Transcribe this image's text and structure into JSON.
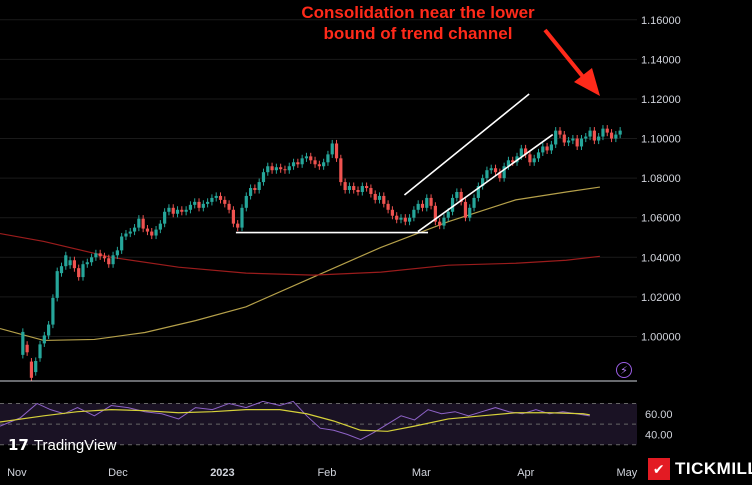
{
  "annotation": {
    "line1": "Consolidation near the lower",
    "line2": "bound of trend channel"
  },
  "branding": {
    "tradingview": "TradingView",
    "tickmill": "TICKMILL"
  },
  "icons": {
    "tradingview_logo": "tradingview-logo-icon",
    "tickmill_logo": "tickmill-logo-icon",
    "flash": "lightning-icon"
  },
  "colors": {
    "background": "#000000",
    "up_candle": "#26a69a",
    "down_candle": "#ef5350",
    "ma_fast": "#b5a04a",
    "ma_slow": "#9b1c1c",
    "rsi": "#8e63c7",
    "rsi_ma": "#d6d13a",
    "trendline": "#ffffff",
    "annotation": "#ff2a1a"
  },
  "chart_data": {
    "type": "candlestick",
    "price_axis": {
      "ylim": [
        0.978,
        1.17
      ],
      "ticks": [
        "1.16000",
        "1.14000",
        "1.12000",
        "1.10000",
        "1.08000",
        "1.06000",
        "1.04000",
        "1.02000",
        "1.00000"
      ]
    },
    "time_axis": {
      "labels": [
        "Nov",
        "Dec",
        "2023",
        "Feb",
        "Mar",
        "Apr",
        "May"
      ],
      "label_days": [
        2,
        32,
        63,
        94,
        122,
        153,
        183
      ],
      "xlim": [
        -3,
        186
      ]
    },
    "candles": [
      [
        1,
        0.9907,
        1.0023
      ],
      [
        2,
        0.9958,
        0.992
      ],
      [
        3,
        0.9873,
        0.9791
      ],
      [
        4,
        0.982,
        0.9876
      ],
      [
        5,
        0.989,
        0.996
      ],
      [
        6,
        0.9965,
        1.0005
      ],
      [
        7,
        1.0005,
        1.006
      ],
      [
        8,
        1.006,
        1.0195
      ],
      [
        9,
        1.0195,
        1.033
      ],
      [
        10,
        1.032,
        1.0355
      ],
      [
        11,
        1.0355,
        1.041
      ],
      [
        12,
        1.036,
        1.0385
      ],
      [
        13,
        1.0385,
        1.0345
      ],
      [
        14,
        1.0345,
        1.03
      ],
      [
        15,
        1.03,
        1.0365
      ],
      [
        16,
        1.0365,
        1.0375
      ],
      [
        17,
        1.0375,
        1.04
      ],
      [
        18,
        1.04,
        1.042
      ],
      [
        19,
        1.042,
        1.0405
      ],
      [
        20,
        1.0405,
        1.0395
      ],
      [
        21,
        1.0395,
        1.0365
      ],
      [
        22,
        1.0365,
        1.041
      ],
      [
        23,
        1.041,
        1.0435
      ],
      [
        24,
        1.0435,
        1.0505
      ],
      [
        25,
        1.0505,
        1.052
      ],
      [
        26,
        1.052,
        1.053
      ],
      [
        27,
        1.053,
        1.055
      ],
      [
        28,
        1.055,
        1.0595
      ],
      [
        29,
        1.0595,
        1.0545
      ],
      [
        30,
        1.0545,
        1.053
      ],
      [
        31,
        1.053,
        1.051
      ],
      [
        32,
        1.051,
        1.054
      ],
      [
        33,
        1.054,
        1.057
      ],
      [
        34,
        1.057,
        1.063
      ],
      [
        35,
        1.063,
        1.065
      ],
      [
        36,
        1.065,
        1.062
      ],
      [
        37,
        1.062,
        1.064
      ],
      [
        38,
        1.064,
        1.063
      ],
      [
        39,
        1.063,
        1.064
      ],
      [
        40,
        1.064,
        1.0665
      ],
      [
        41,
        1.0665,
        1.068
      ],
      [
        42,
        1.068,
        1.065
      ],
      [
        43,
        1.065,
        1.067
      ],
      [
        44,
        1.067,
        1.068
      ],
      [
        45,
        1.068,
        1.07
      ],
      [
        46,
        1.07,
        1.071
      ],
      [
        47,
        1.071,
        1.069
      ],
      [
        48,
        1.069,
        1.067
      ],
      [
        49,
        1.067,
        1.064
      ],
      [
        50,
        1.064,
        1.057
      ],
      [
        51,
        1.057,
        1.055
      ],
      [
        52,
        1.055,
        1.065
      ],
      [
        53,
        1.065,
        1.071
      ],
      [
        54,
        1.071,
        1.075
      ],
      [
        55,
        1.075,
        1.074
      ],
      [
        56,
        1.074,
        1.078
      ],
      [
        57,
        1.078,
        1.083
      ],
      [
        58,
        1.083,
        1.086
      ],
      [
        59,
        1.086,
        1.084
      ],
      [
        60,
        1.084,
        1.0855
      ],
      [
        61,
        1.0855,
        1.0845
      ],
      [
        62,
        1.0845,
        1.084
      ],
      [
        63,
        1.084,
        1.086
      ],
      [
        64,
        1.086,
        1.088
      ],
      [
        65,
        1.088,
        1.087
      ],
      [
        66,
        1.087,
        1.09
      ],
      [
        67,
        1.09,
        1.091
      ],
      [
        68,
        1.091,
        1.089
      ],
      [
        69,
        1.089,
        1.087
      ],
      [
        70,
        1.087,
        1.086
      ],
      [
        71,
        1.086,
        1.088
      ],
      [
        72,
        1.088,
        1.092
      ],
      [
        73,
        1.092,
        1.0975
      ],
      [
        74,
        1.0975,
        1.09
      ],
      [
        75,
        1.09,
        1.078
      ],
      [
        76,
        1.078,
        1.074
      ],
      [
        77,
        1.074,
        1.076
      ],
      [
        78,
        1.076,
        1.074
      ],
      [
        79,
        1.074,
        1.073
      ],
      [
        80,
        1.073,
        1.076
      ],
      [
        81,
        1.076,
        1.075
      ],
      [
        82,
        1.075,
        1.072
      ],
      [
        83,
        1.072,
        1.069
      ],
      [
        84,
        1.069,
        1.071
      ],
      [
        85,
        1.071,
        1.067
      ],
      [
        86,
        1.067,
        1.064
      ],
      [
        87,
        1.064,
        1.061
      ],
      [
        88,
        1.061,
        1.059
      ],
      [
        89,
        1.059,
        1.06
      ],
      [
        90,
        1.06,
        1.058
      ],
      [
        91,
        1.058,
        1.06
      ],
      [
        92,
        1.06,
        1.064
      ],
      [
        93,
        1.064,
        1.067
      ],
      [
        94,
        1.067,
        1.065
      ],
      [
        95,
        1.065,
        1.07
      ],
      [
        96,
        1.07,
        1.066
      ],
      [
        97,
        1.066,
        1.058
      ],
      [
        98,
        1.058,
        1.056
      ],
      [
        99,
        1.056,
        1.06
      ],
      [
        100,
        1.06,
        1.063
      ],
      [
        101,
        1.063,
        1.07
      ],
      [
        102,
        1.07,
        1.073
      ],
      [
        103,
        1.073,
        1.068
      ],
      [
        104,
        1.068,
        1.06
      ],
      [
        105,
        1.06,
        1.065
      ],
      [
        106,
        1.065,
        1.07
      ],
      [
        107,
        1.07,
        1.076
      ],
      [
        108,
        1.076,
        1.08
      ],
      [
        109,
        1.08,
        1.084
      ],
      [
        110,
        1.084,
        1.085
      ],
      [
        111,
        1.085,
        1.083
      ],
      [
        112,
        1.083,
        1.08
      ],
      [
        113,
        1.08,
        1.086
      ],
      [
        114,
        1.086,
        1.089
      ],
      [
        115,
        1.089,
        1.088
      ],
      [
        116,
        1.088,
        1.091
      ],
      [
        117,
        1.091,
        1.095
      ],
      [
        118,
        1.095,
        1.092
      ],
      [
        119,
        1.092,
        1.088
      ],
      [
        120,
        1.088,
        1.09
      ],
      [
        121,
        1.09,
        1.093
      ],
      [
        122,
        1.093,
        1.096
      ],
      [
        123,
        1.096,
        1.094
      ],
      [
        124,
        1.094,
        1.097
      ],
      [
        125,
        1.097,
        1.104
      ],
      [
        126,
        1.104,
        1.102
      ],
      [
        127,
        1.102,
        1.098
      ],
      [
        128,
        1.098,
        1.099
      ],
      [
        129,
        1.099,
        1.1
      ],
      [
        130,
        1.1,
        1.096
      ],
      [
        131,
        1.096,
        1.1
      ],
      [
        132,
        1.1,
        1.101
      ],
      [
        133,
        1.101,
        1.104
      ],
      [
        134,
        1.104,
        1.099
      ],
      [
        135,
        1.099,
        1.101
      ],
      [
        136,
        1.101,
        1.105
      ],
      [
        137,
        1.105,
        1.103
      ],
      [
        138,
        1.103,
        1.1
      ],
      [
        139,
        1.1,
        1.102
      ],
      [
        140,
        1.102,
        1.104
      ]
    ],
    "candle_days": "index i maps to day 2.5+i*1.275 (approx.)",
    "trend_channel": {
      "support_line": {
        "from": [
          67,
          1.0525
        ],
        "to": [
          124,
          1.0525
        ]
      },
      "channel_upper": {
        "from": [
          117,
          1.0715
        ],
        "to": [
          154,
          1.1225
        ]
      },
      "channel_lower": {
        "from": [
          121,
          1.053
        ],
        "to": [
          161,
          1.102
        ]
      }
    },
    "moving_averages": [
      {
        "points": [
          [
            -3,
            1.004
          ],
          [
            10,
            0.998
          ],
          [
            25,
            0.9985
          ],
          [
            40,
            1.002
          ],
          [
            55,
            1.008
          ],
          [
            70,
            1.015
          ],
          [
            90,
            1.03
          ],
          [
            110,
            1.045
          ],
          [
            130,
            1.058
          ],
          [
            150,
            1.069
          ],
          [
            165,
            1.073
          ],
          [
            175,
            1.0755
          ]
        ]
      },
      {
        "points": [
          [
            -3,
            1.052
          ],
          [
            10,
            1.048
          ],
          [
            30,
            1.04
          ],
          [
            50,
            1.035
          ],
          [
            70,
            1.032
          ],
          [
            90,
            1.031
          ],
          [
            110,
            1.0325
          ],
          [
            130,
            1.036
          ],
          [
            150,
            1.037
          ],
          [
            165,
            1.0385
          ],
          [
            175,
            1.0405
          ]
        ]
      }
    ],
    "rsi_panel": {
      "ylim": [
        20,
        85
      ],
      "ticks": [
        "60.00",
        "40.00"
      ],
      "guide_levels": [
        70,
        50,
        30
      ],
      "rsi": [
        [
          -3,
          48
        ],
        [
          3,
          56
        ],
        [
          8,
          70
        ],
        [
          12,
          64
        ],
        [
          16,
          60
        ],
        [
          20,
          66
        ],
        [
          25,
          58
        ],
        [
          30,
          68
        ],
        [
          35,
          66
        ],
        [
          40,
          62
        ],
        [
          45,
          60
        ],
        [
          50,
          55
        ],
        [
          55,
          66
        ],
        [
          60,
          64
        ],
        [
          65,
          70
        ],
        [
          70,
          66
        ],
        [
          75,
          72
        ],
        [
          80,
          68
        ],
        [
          84,
          72
        ],
        [
          88,
          58
        ],
        [
          92,
          46
        ],
        [
          96,
          44
        ],
        [
          100,
          40
        ],
        [
          104,
          35
        ],
        [
          108,
          42
        ],
        [
          112,
          50
        ],
        [
          116,
          58
        ],
        [
          120,
          54
        ],
        [
          124,
          64
        ],
        [
          128,
          60
        ],
        [
          132,
          62
        ],
        [
          136,
          58
        ],
        [
          140,
          62
        ],
        [
          144,
          66
        ],
        [
          148,
          62
        ],
        [
          152,
          60
        ],
        [
          156,
          64
        ],
        [
          160,
          60
        ],
        [
          164,
          62
        ],
        [
          168,
          60
        ],
        [
          172,
          58
        ]
      ],
      "rsi_ma": [
        [
          -3,
          52
        ],
        [
          10,
          58
        ],
        [
          20,
          62
        ],
        [
          30,
          64
        ],
        [
          40,
          63
        ],
        [
          50,
          61
        ],
        [
          60,
          62
        ],
        [
          70,
          64
        ],
        [
          80,
          64
        ],
        [
          88,
          60
        ],
        [
          96,
          53
        ],
        [
          104,
          44
        ],
        [
          112,
          43
        ],
        [
          120,
          48
        ],
        [
          130,
          55
        ],
        [
          140,
          58
        ],
        [
          150,
          61
        ],
        [
          160,
          61
        ],
        [
          170,
          60
        ],
        [
          172,
          59
        ]
      ]
    }
  }
}
